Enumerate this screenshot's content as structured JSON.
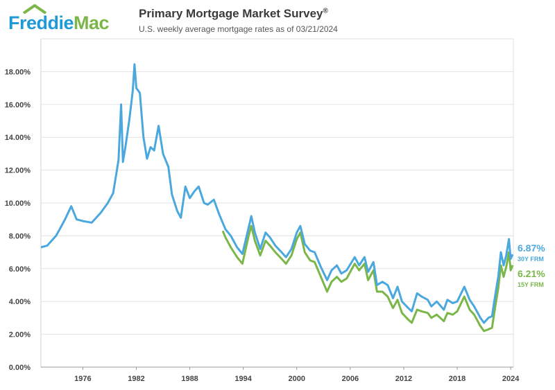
{
  "brand": {
    "name_part1": "Freddie",
    "name_part2": "Mac",
    "color_blue": "#1f9ad6",
    "color_green": "#7ab648"
  },
  "header": {
    "title": "Primary Mortgage Market Survey",
    "title_mark": "®",
    "subtitle": "U.S. weekly average mortgage rates as of 03/21/2024"
  },
  "chart_data": {
    "type": "line",
    "title": "Primary Mortgage Market Survey",
    "xlabel": "",
    "ylabel": "",
    "xlim": [
      1971.3,
      2024.3
    ],
    "ylim": [
      0,
      20
    ],
    "grid": true,
    "y_ticks": [
      "0.00%",
      "2.00%",
      "4.00%",
      "6.00%",
      "8.00%",
      "10.00%",
      "12.00%",
      "14.00%",
      "16.00%",
      "18.00%"
    ],
    "x_ticks": [
      "1976",
      "1982",
      "1988",
      "1994",
      "2000",
      "2006",
      "2012",
      "2018",
      "2024"
    ],
    "series": [
      {
        "name": "30Y FRM",
        "color": "#4aa8de",
        "end_value": "6.87%",
        "end_label": "30Y FRM",
        "points": [
          [
            1971.3,
            7.3
          ],
          [
            1972.0,
            7.4
          ],
          [
            1973.0,
            8.0
          ],
          [
            1973.5,
            8.5
          ],
          [
            1974.0,
            9.0
          ],
          [
            1974.7,
            9.8
          ],
          [
            1975.3,
            9.0
          ],
          [
            1976.0,
            8.9
          ],
          [
            1977.0,
            8.8
          ],
          [
            1978.0,
            9.4
          ],
          [
            1978.8,
            10.0
          ],
          [
            1979.4,
            10.6
          ],
          [
            1980.0,
            12.6
          ],
          [
            1980.3,
            16.0
          ],
          [
            1980.5,
            12.5
          ],
          [
            1980.8,
            13.5
          ],
          [
            1981.2,
            15.0
          ],
          [
            1981.6,
            16.8
          ],
          [
            1981.8,
            18.45
          ],
          [
            1982.0,
            17.0
          ],
          [
            1982.4,
            16.7
          ],
          [
            1982.8,
            14.0
          ],
          [
            1983.2,
            12.7
          ],
          [
            1983.6,
            13.4
          ],
          [
            1984.0,
            13.2
          ],
          [
            1984.5,
            14.7
          ],
          [
            1985.0,
            13.0
          ],
          [
            1985.6,
            12.2
          ],
          [
            1986.0,
            10.5
          ],
          [
            1986.6,
            9.5
          ],
          [
            1987.0,
            9.1
          ],
          [
            1987.5,
            11.0
          ],
          [
            1988.0,
            10.3
          ],
          [
            1988.5,
            10.7
          ],
          [
            1989.0,
            11.0
          ],
          [
            1989.6,
            10.0
          ],
          [
            1990.0,
            9.9
          ],
          [
            1990.7,
            10.2
          ],
          [
            1991.3,
            9.3
          ],
          [
            1992.0,
            8.4
          ],
          [
            1992.6,
            8.0
          ],
          [
            1993.3,
            7.3
          ],
          [
            1993.9,
            6.9
          ],
          [
            1994.6,
            8.5
          ],
          [
            1994.9,
            9.2
          ],
          [
            1995.3,
            8.2
          ],
          [
            1995.9,
            7.2
          ],
          [
            1996.5,
            8.2
          ],
          [
            1997.0,
            7.9
          ],
          [
            1997.6,
            7.4
          ],
          [
            1998.3,
            7.0
          ],
          [
            1998.8,
            6.7
          ],
          [
            1999.4,
            7.2
          ],
          [
            2000.0,
            8.2
          ],
          [
            2000.4,
            8.6
          ],
          [
            2000.9,
            7.5
          ],
          [
            2001.5,
            7.1
          ],
          [
            2002.0,
            7.0
          ],
          [
            2002.7,
            6.1
          ],
          [
            2003.4,
            5.3
          ],
          [
            2003.9,
            5.9
          ],
          [
            2004.5,
            6.2
          ],
          [
            2005.0,
            5.7
          ],
          [
            2005.6,
            5.9
          ],
          [
            2006.5,
            6.7
          ],
          [
            2007.0,
            6.2
          ],
          [
            2007.6,
            6.7
          ],
          [
            2008.0,
            5.8
          ],
          [
            2008.6,
            6.4
          ],
          [
            2009.0,
            5.0
          ],
          [
            2009.6,
            5.2
          ],
          [
            2010.2,
            5.0
          ],
          [
            2010.8,
            4.2
          ],
          [
            2011.3,
            4.9
          ],
          [
            2011.8,
            4.0
          ],
          [
            2012.5,
            3.6
          ],
          [
            2012.9,
            3.4
          ],
          [
            2013.5,
            4.5
          ],
          [
            2014.0,
            4.3
          ],
          [
            2014.7,
            4.1
          ],
          [
            2015.1,
            3.7
          ],
          [
            2015.7,
            4.0
          ],
          [
            2016.5,
            3.5
          ],
          [
            2016.9,
            4.1
          ],
          [
            2017.5,
            3.9
          ],
          [
            2018.0,
            4.0
          ],
          [
            2018.8,
            4.9
          ],
          [
            2019.4,
            4.1
          ],
          [
            2019.9,
            3.7
          ],
          [
            2020.6,
            3.0
          ],
          [
            2021.0,
            2.7
          ],
          [
            2021.5,
            3.0
          ],
          [
            2021.9,
            3.1
          ],
          [
            2022.3,
            4.5
          ],
          [
            2022.6,
            5.5
          ],
          [
            2022.9,
            7.0
          ],
          [
            2023.2,
            6.2
          ],
          [
            2023.5,
            6.8
          ],
          [
            2023.8,
            7.8
          ],
          [
            2024.0,
            6.6
          ],
          [
            2024.22,
            6.87
          ]
        ]
      },
      {
        "name": "15Y FRM",
        "color": "#7ab648",
        "end_value": "6.21%",
        "end_label": "15Y FRM",
        "points": [
          [
            1991.7,
            8.3
          ],
          [
            1992.0,
            7.9
          ],
          [
            1992.6,
            7.3
          ],
          [
            1993.3,
            6.7
          ],
          [
            1993.9,
            6.3
          ],
          [
            1994.6,
            8.0
          ],
          [
            1994.9,
            8.6
          ],
          [
            1995.3,
            7.7
          ],
          [
            1995.9,
            6.8
          ],
          [
            1996.5,
            7.7
          ],
          [
            1997.0,
            7.4
          ],
          [
            1997.6,
            7.0
          ],
          [
            1998.3,
            6.6
          ],
          [
            1998.8,
            6.3
          ],
          [
            1999.4,
            6.8
          ],
          [
            2000.0,
            7.8
          ],
          [
            2000.4,
            8.2
          ],
          [
            2000.9,
            7.0
          ],
          [
            2001.5,
            6.5
          ],
          [
            2002.0,
            6.4
          ],
          [
            2002.7,
            5.5
          ],
          [
            2003.4,
            4.6
          ],
          [
            2003.9,
            5.2
          ],
          [
            2004.5,
            5.5
          ],
          [
            2005.0,
            5.2
          ],
          [
            2005.6,
            5.4
          ],
          [
            2006.5,
            6.3
          ],
          [
            2007.0,
            5.9
          ],
          [
            2007.6,
            6.3
          ],
          [
            2008.0,
            5.3
          ],
          [
            2008.6,
            5.9
          ],
          [
            2009.0,
            4.6
          ],
          [
            2009.6,
            4.6
          ],
          [
            2010.2,
            4.3
          ],
          [
            2010.8,
            3.6
          ],
          [
            2011.3,
            4.1
          ],
          [
            2011.8,
            3.3
          ],
          [
            2012.5,
            2.9
          ],
          [
            2012.9,
            2.7
          ],
          [
            2013.5,
            3.5
          ],
          [
            2014.0,
            3.4
          ],
          [
            2014.7,
            3.3
          ],
          [
            2015.1,
            3.0
          ],
          [
            2015.7,
            3.2
          ],
          [
            2016.5,
            2.8
          ],
          [
            2016.9,
            3.3
          ],
          [
            2017.5,
            3.2
          ],
          [
            2018.0,
            3.4
          ],
          [
            2018.8,
            4.3
          ],
          [
            2019.4,
            3.5
          ],
          [
            2019.9,
            3.2
          ],
          [
            2020.6,
            2.5
          ],
          [
            2021.0,
            2.2
          ],
          [
            2021.5,
            2.3
          ],
          [
            2021.9,
            2.4
          ],
          [
            2022.3,
            3.8
          ],
          [
            2022.6,
            4.8
          ],
          [
            2022.9,
            6.2
          ],
          [
            2023.2,
            5.5
          ],
          [
            2023.5,
            6.1
          ],
          [
            2023.8,
            7.0
          ],
          [
            2024.0,
            5.9
          ],
          [
            2024.22,
            6.21
          ]
        ]
      }
    ]
  }
}
